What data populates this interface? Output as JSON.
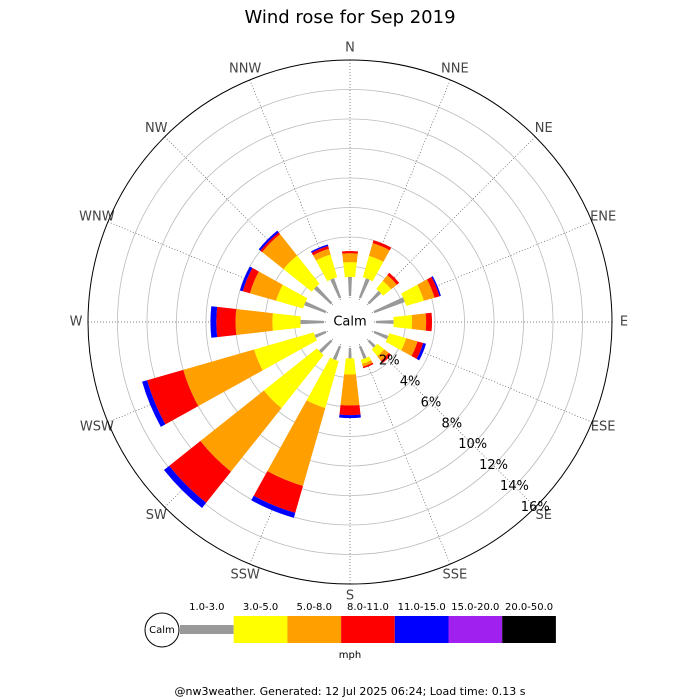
{
  "chart_data": {
    "type": "windrose",
    "title": "Wind rose for Sep 2019",
    "categories": [
      "N",
      "NNE",
      "NE",
      "ENE",
      "E",
      "ESE",
      "SE",
      "SSE",
      "S",
      "SSW",
      "SW",
      "WSW",
      "W",
      "WNW",
      "NW",
      "NNW"
    ],
    "calm_label": "Calm",
    "ylim": [
      0,
      16
    ],
    "yticks": [
      {
        "value": 2,
        "label": "2%"
      },
      {
        "value": 4,
        "label": "4%"
      },
      {
        "value": 6,
        "label": "6%"
      },
      {
        "value": 8,
        "label": "8%"
      },
      {
        "value": 10,
        "label": "10%"
      },
      {
        "value": 12,
        "label": "12%"
      },
      {
        "value": 14,
        "label": "14%"
      },
      {
        "value": 16,
        "label": "16%"
      }
    ],
    "series": [
      {
        "name": "1.0-3.0",
        "color": "#999999",
        "values": [
          1.3,
          1.4,
          1.1,
          2.2,
          1.2,
          1.0,
          0.6,
          0.9,
          0.7,
          1.0,
          1.1,
          0.8,
          1.6,
          1.55,
          1.55,
          1.4
        ]
      },
      {
        "name": "3.0-5.0",
        "color": "#ffff00",
        "values": [
          1.0,
          1.5,
          0.7,
          1.25,
          1.25,
          1.2,
          0.6,
          0.3,
          1.1,
          3.3,
          4.6,
          4.2,
          1.9,
          1.9,
          2.45,
          1.6
        ]
      },
      {
        "name": "5.0-8.0",
        "color": "#ffa000",
        "values": [
          0.6,
          0.9,
          0.5,
          0.75,
          0.95,
          0.8,
          0.4,
          0.2,
          2.1,
          5.5,
          5.5,
          5.0,
          2.5,
          1.85,
          1.85,
          0.4
        ]
      },
      {
        "name": "8.0-11.0",
        "color": "#ff0000",
        "values": [
          0.15,
          0.2,
          0.2,
          0.35,
          0.4,
          0.4,
          0.2,
          0.1,
          0.65,
          1.9,
          2.7,
          2.55,
          1.3,
          0.5,
          0.15,
          0.2
        ]
      },
      {
        "name": "11.0-15.0",
        "color": "#0000ff",
        "values": [
          0,
          0,
          0,
          0.1,
          0,
          0.2,
          0,
          0,
          0.2,
          0.35,
          0.45,
          0.35,
          0.4,
          0.2,
          0.15,
          0.1
        ]
      },
      {
        "name": "15.0-20.0",
        "color": "#a020f0",
        "values": [
          0,
          0,
          0,
          0,
          0,
          0,
          0,
          0,
          0,
          0,
          0,
          0,
          0,
          0,
          0,
          0
        ]
      },
      {
        "name": "20.0-50.0",
        "color": "#000000",
        "values": [
          0,
          0,
          0,
          0,
          0,
          0,
          0,
          0,
          0,
          0,
          0,
          0,
          0,
          0,
          0,
          0
        ]
      }
    ],
    "unit": "mph",
    "footer": "@nw3weather. Generated: 12 Jul 2025 06:24; Load time: 0.13 s"
  }
}
